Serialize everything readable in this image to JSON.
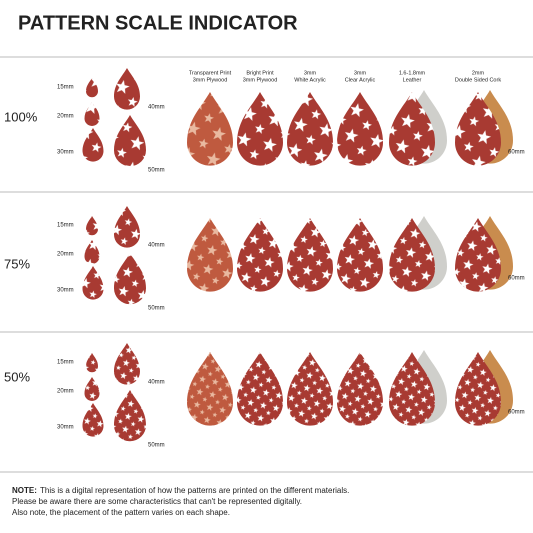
{
  "title": "PATTERN SCALE INDICATOR",
  "columns": [
    {
      "line1": "Transparent Print",
      "line2": "3mm Plywood"
    },
    {
      "line1": "Bright Print",
      "line2": "3mm Plywood"
    },
    {
      "line1": "3mm",
      "line2": "White Acrylic"
    },
    {
      "line1": "3mm",
      "line2": "Clear Acrylic"
    },
    {
      "line1": "1.6-1.8mm",
      "line2": "Leather"
    },
    {
      "line1": "2mm",
      "line2": "Double Sided Cork"
    }
  ],
  "sections": [
    {
      "scale": "100%",
      "sizes": [
        "15mm",
        "20mm",
        "30mm",
        "40mm",
        "50mm"
      ],
      "width_label": "60mm"
    },
    {
      "scale": "75%",
      "sizes": [
        "15mm",
        "20mm",
        "30mm",
        "40mm",
        "50mm"
      ],
      "width_label": "60mm"
    },
    {
      "scale": "50%",
      "sizes": [
        "15mm",
        "20mm",
        "30mm",
        "40mm",
        "50mm"
      ],
      "width_label": "60mm"
    }
  ],
  "note": {
    "label": "NOTE:",
    "lines": [
      "This is a digital representation of how the patterns are printed on the different materials.",
      "Please be aware there are some characteristics that can't be represented digitally.",
      "Also note, the placement of the pattern varies on each shape."
    ]
  }
}
